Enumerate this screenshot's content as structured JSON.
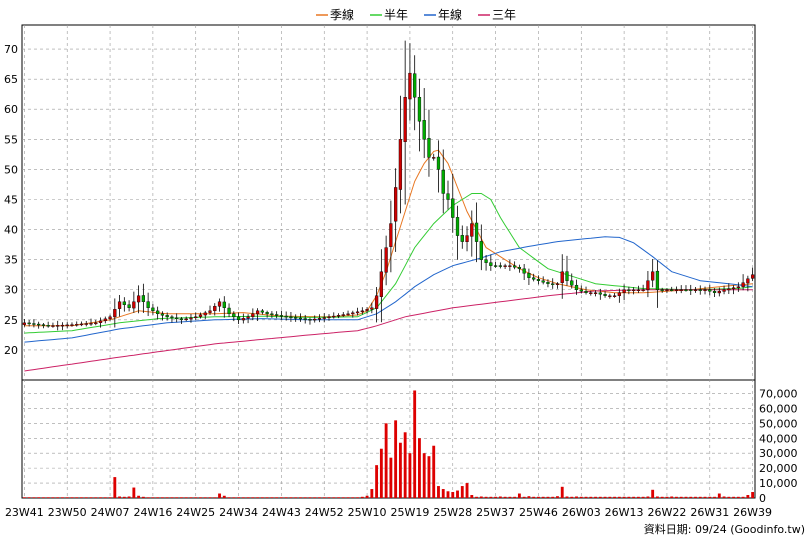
{
  "chart_data": {
    "type": "candlestick",
    "legend": {
      "placement": "top-center",
      "items": [
        {
          "name": "季線",
          "color": "#e87722"
        },
        {
          "name": "半年",
          "color": "#33cc33"
        },
        {
          "name": "年線",
          "color": "#2266cc"
        },
        {
          "name": "三年",
          "color": "#cc2266"
        }
      ]
    },
    "colors": {
      "up": "#cc0000",
      "down": "#00aa00",
      "volume": "#dd0000",
      "grid": "#999999"
    },
    "grid": true,
    "price_axis": {
      "range": [
        15,
        74
      ],
      "ticks": [
        20,
        25,
        30,
        35,
        40,
        45,
        50,
        55,
        60,
        65,
        70
      ],
      "side": "left"
    },
    "volume_axis": {
      "range": [
        0,
        75000
      ],
      "ticks": [
        "0",
        "10,000",
        "20,000",
        "30,000",
        "40,000",
        "50,000",
        "60,000",
        "70,000"
      ],
      "tick_values": [
        0,
        10000,
        20000,
        30000,
        40000,
        50000,
        60000,
        70000
      ],
      "side": "right"
    },
    "x_axis": {
      "start_week": "23W41",
      "total_weeks": 154,
      "ticks": [
        "23W41",
        "23W50",
        "24W07",
        "24W16",
        "24W25",
        "24W34",
        "24W43",
        "24W52",
        "25W10",
        "25W19",
        "25W28",
        "25W37",
        "25W46",
        "26W03",
        "26W13",
        "26W22",
        "26W31",
        "26W39"
      ]
    },
    "anchors": {
      "close": [
        [
          0,
          24.5
        ],
        [
          5,
          24
        ],
        [
          10,
          24.2
        ],
        [
          15,
          24.5
        ],
        [
          18,
          25.5
        ],
        [
          20,
          28
        ],
        [
          22,
          27
        ],
        [
          24,
          29
        ],
        [
          26,
          27
        ],
        [
          28,
          26
        ],
        [
          30,
          25.5
        ],
        [
          33,
          25
        ],
        [
          36,
          25.5
        ],
        [
          39,
          26.5
        ],
        [
          41,
          28
        ],
        [
          43,
          26
        ],
        [
          45,
          25
        ],
        [
          47,
          25.5
        ],
        [
          49,
          26.5
        ],
        [
          51,
          26
        ],
        [
          55,
          25.5
        ],
        [
          60,
          25
        ],
        [
          64,
          25.5
        ],
        [
          68,
          26
        ],
        [
          71,
          26.5
        ],
        [
          73,
          27
        ],
        [
          74,
          29
        ],
        [
          75,
          33
        ],
        [
          76,
          37
        ],
        [
          77,
          41
        ],
        [
          78,
          47
        ],
        [
          79,
          55
        ],
        [
          80,
          62
        ],
        [
          81,
          66
        ],
        [
          82,
          62
        ],
        [
          83,
          58
        ],
        [
          84,
          55
        ],
        [
          85,
          52
        ],
        [
          86,
          52
        ],
        [
          87,
          50
        ],
        [
          88,
          46
        ],
        [
          89,
          45
        ],
        [
          90,
          42
        ],
        [
          91,
          39
        ],
        [
          92,
          38
        ],
        [
          93,
          39
        ],
        [
          94,
          41
        ],
        [
          95,
          38
        ],
        [
          96,
          35
        ],
        [
          98,
          34
        ],
        [
          100,
          34
        ],
        [
          102,
          34
        ],
        [
          104,
          33.5
        ],
        [
          106,
          32
        ],
        [
          108,
          31.5
        ],
        [
          110,
          31
        ],
        [
          112,
          31
        ],
        [
          113,
          33
        ],
        [
          114,
          31.5
        ],
        [
          116,
          30
        ],
        [
          118,
          29.5
        ],
        [
          120,
          29.5
        ],
        [
          122,
          29
        ],
        [
          124,
          29
        ],
        [
          126,
          30
        ],
        [
          128,
          30
        ],
        [
          130,
          30
        ],
        [
          132,
          33
        ],
        [
          133,
          30
        ],
        [
          135,
          30
        ],
        [
          137,
          30
        ],
        [
          140,
          30
        ],
        [
          143,
          30
        ],
        [
          145,
          29.5
        ],
        [
          147,
          30
        ],
        [
          150,
          30.5
        ],
        [
          153,
          32.5
        ]
      ],
      "ma_q": [
        [
          0,
          24
        ],
        [
          10,
          24
        ],
        [
          18,
          25
        ],
        [
          24,
          26.5
        ],
        [
          30,
          26
        ],
        [
          40,
          26
        ],
        [
          46,
          26.2
        ],
        [
          54,
          25.6
        ],
        [
          64,
          25.5
        ],
        [
          70,
          25.8
        ],
        [
          72,
          26.5
        ],
        [
          74,
          29
        ],
        [
          76,
          33
        ],
        [
          78,
          38
        ],
        [
          80,
          43
        ],
        [
          82,
          48
        ],
        [
          84,
          51
        ],
        [
          86,
          53
        ],
        [
          87,
          53.2
        ],
        [
          89,
          51
        ],
        [
          91,
          47
        ],
        [
          93,
          43
        ],
        [
          95,
          40
        ],
        [
          97,
          37
        ],
        [
          100,
          35.5
        ],
        [
          104,
          33.5
        ],
        [
          108,
          32
        ],
        [
          112,
          31
        ],
        [
          118,
          30
        ],
        [
          124,
          29.5
        ],
        [
          130,
          29.5
        ],
        [
          136,
          29.8
        ],
        [
          140,
          30
        ],
        [
          146,
          30.5
        ],
        [
          153,
          31
        ]
      ],
      "ma_h": [
        [
          0,
          22.8
        ],
        [
          10,
          23.2
        ],
        [
          20,
          24.5
        ],
        [
          28,
          25.2
        ],
        [
          40,
          25.5
        ],
        [
          50,
          25.6
        ],
        [
          60,
          25.4
        ],
        [
          70,
          25.5
        ],
        [
          74,
          27
        ],
        [
          78,
          31
        ],
        [
          82,
          37
        ],
        [
          86,
          41
        ],
        [
          90,
          44
        ],
        [
          94,
          46
        ],
        [
          96,
          46
        ],
        [
          98,
          45
        ],
        [
          100,
          42
        ],
        [
          104,
          37
        ],
        [
          110,
          33.5
        ],
        [
          120,
          31
        ],
        [
          130,
          30.2
        ],
        [
          140,
          30
        ],
        [
          150,
          30.2
        ],
        [
          153,
          30.5
        ]
      ],
      "ma_y": [
        [
          0,
          21.3
        ],
        [
          10,
          22
        ],
        [
          20,
          23.5
        ],
        [
          30,
          24.5
        ],
        [
          40,
          25
        ],
        [
          50,
          25.2
        ],
        [
          60,
          25
        ],
        [
          70,
          25
        ],
        [
          74,
          26
        ],
        [
          78,
          28
        ],
        [
          82,
          30.5
        ],
        [
          86,
          32.5
        ],
        [
          90,
          34
        ],
        [
          96,
          35.3
        ],
        [
          100,
          36.3
        ],
        [
          106,
          37.2
        ],
        [
          112,
          38
        ],
        [
          118,
          38.5
        ],
        [
          122,
          38.8
        ],
        [
          125,
          38.7
        ],
        [
          128,
          37.8
        ],
        [
          132,
          35.5
        ],
        [
          136,
          33
        ],
        [
          142,
          31.5
        ],
        [
          148,
          31
        ],
        [
          153,
          30.5
        ]
      ],
      "ma_3y": [
        [
          0,
          16.5
        ],
        [
          20,
          18.8
        ],
        [
          40,
          21
        ],
        [
          60,
          22.5
        ],
        [
          70,
          23.2
        ],
        [
          74,
          24
        ],
        [
          80,
          25.5
        ],
        [
          90,
          27
        ],
        [
          100,
          28
        ],
        [
          110,
          29
        ],
        [
          120,
          29.8
        ],
        [
          130,
          30
        ],
        [
          140,
          30
        ],
        [
          153,
          30
        ]
      ],
      "volume": [
        [
          0,
          500
        ],
        [
          18,
          500
        ],
        [
          19,
          14000
        ],
        [
          20,
          1000
        ],
        [
          22,
          1000
        ],
        [
          23,
          7000
        ],
        [
          24,
          1500
        ],
        [
          26,
          500
        ],
        [
          40,
          500
        ],
        [
          41,
          3000
        ],
        [
          42,
          1500
        ],
        [
          43,
          500
        ],
        [
          70,
          500
        ],
        [
          72,
          1500
        ],
        [
          73,
          6000
        ],
        [
          74,
          22000
        ],
        [
          75,
          33000
        ],
        [
          76,
          50000
        ],
        [
          77,
          27000
        ],
        [
          78,
          52000
        ],
        [
          79,
          37000
        ],
        [
          80,
          44000
        ],
        [
          81,
          30000
        ],
        [
          82,
          72000
        ],
        [
          83,
          40000
        ],
        [
          84,
          30000
        ],
        [
          85,
          28000
        ],
        [
          86,
          35000
        ],
        [
          87,
          8000
        ],
        [
          88,
          6000
        ],
        [
          89,
          4500
        ],
        [
          90,
          4000
        ],
        [
          91,
          5000
        ],
        [
          92,
          8000
        ],
        [
          93,
          10000
        ],
        [
          94,
          2000
        ],
        [
          96,
          1000
        ],
        [
          100,
          1000
        ],
        [
          104,
          3000
        ],
        [
          106,
          1200
        ],
        [
          112,
          1200
        ],
        [
          113,
          7500
        ],
        [
          114,
          1000
        ],
        [
          116,
          1000
        ],
        [
          131,
          1000
        ],
        [
          132,
          5500
        ],
        [
          133,
          1000
        ],
        [
          136,
          1000
        ],
        [
          146,
          3000
        ],
        [
          147,
          1000
        ],
        [
          152,
          2000
        ],
        [
          153,
          4000
        ]
      ]
    },
    "source": "資料日期: 09/24  (Goodinfo.tw)"
  }
}
